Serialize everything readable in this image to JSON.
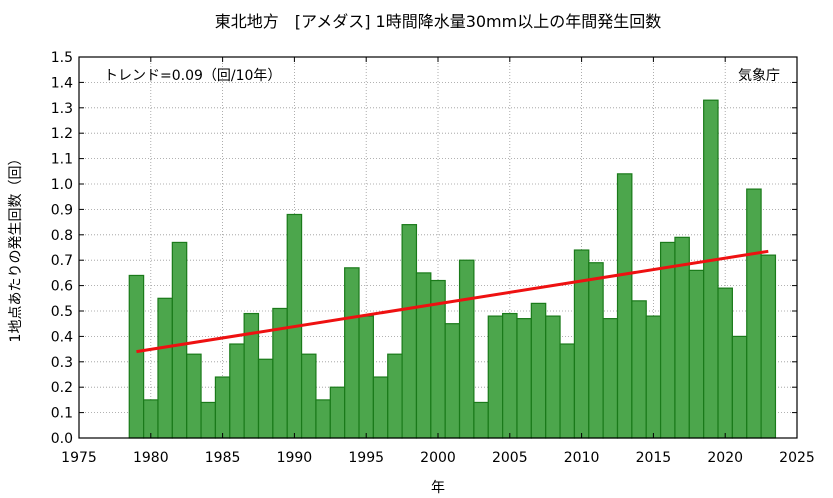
{
  "chart_data": {
    "type": "bar",
    "title": "東北地方　[アメダス] 1時間降水量30mm以上の年間発生回数",
    "xlabel": "年",
    "ylabel": "1地点あたりの発生回数（回）",
    "trend_text": "トレンド=0.09（回/10年）",
    "source_text": "気象庁",
    "xlim": [
      1975,
      2025
    ],
    "ylim": [
      0,
      1.5
    ],
    "x_ticks": [
      1975,
      1980,
      1985,
      1990,
      1995,
      2000,
      2005,
      2010,
      2015,
      2020,
      2025
    ],
    "y_ticks": [
      "0.0",
      "0.1",
      "0.2",
      "0.3",
      "0.4",
      "0.5",
      "0.6",
      "0.7",
      "0.8",
      "0.9",
      "1.0",
      "1.1",
      "1.2",
      "1.3",
      "1.4",
      "1.5"
    ],
    "grid": true,
    "x": [
      1979,
      1980,
      1981,
      1982,
      1983,
      1984,
      1985,
      1986,
      1987,
      1988,
      1989,
      1990,
      1991,
      1992,
      1993,
      1994,
      1995,
      1996,
      1997,
      1998,
      1999,
      2000,
      2001,
      2002,
      2003,
      2004,
      2005,
      2006,
      2007,
      2008,
      2009,
      2010,
      2011,
      2012,
      2013,
      2014,
      2015,
      2016,
      2017,
      2018,
      2019,
      2020,
      2021,
      2022,
      2023
    ],
    "values": [
      0.64,
      0.15,
      0.55,
      0.77,
      0.33,
      0.14,
      0.24,
      0.37,
      0.49,
      0.31,
      0.51,
      0.88,
      0.33,
      0.15,
      0.2,
      0.67,
      0.48,
      0.24,
      0.33,
      0.84,
      0.65,
      0.62,
      0.45,
      0.7,
      0.14,
      0.48,
      0.49,
      0.47,
      0.53,
      0.48,
      0.37,
      0.74,
      0.69,
      0.47,
      1.04,
      0.54,
      0.48,
      0.77,
      0.79,
      0.66,
      1.33,
      0.59,
      0.4,
      0.98,
      0.72
    ],
    "trend_line": {
      "x": [
        1979,
        2023
      ],
      "y": [
        0.34,
        0.735
      ]
    },
    "colors": {
      "bar_fill": "#4ca64c",
      "bar_stroke": "#1a7a1a",
      "trend": "#ee1111",
      "grid": "#999999"
    }
  }
}
